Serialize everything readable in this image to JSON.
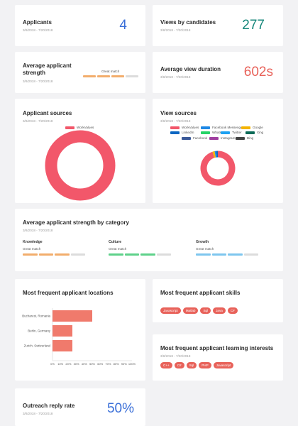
{
  "colors": {
    "blue": "#3a6fd8",
    "teal": "#17877b",
    "coral": "#e8625a",
    "pink": "#f2576a",
    "orange": "#f2ad6c",
    "green": "#5ed18a",
    "skyblue": "#7ec6ee",
    "grey": "#dcdcdc"
  },
  "date_range": "3/8/2018 - 7/20/2018",
  "applicants": {
    "title": "Applicants",
    "value": "4"
  },
  "views": {
    "title": "Views by candidates",
    "value": "277"
  },
  "strength": {
    "title_line1": "Average applicant",
    "title_line2": "strength",
    "level_label": "Great match",
    "filled_segments": 3,
    "total_segments": 4
  },
  "duration": {
    "title": "Average view duration",
    "value": "602s"
  },
  "app_sources": {
    "title": "Applicant sources",
    "legend": [
      {
        "label": "WorkValues",
        "color": "#f2576a"
      }
    ],
    "slices": [
      {
        "label": "WorkValues",
        "value": 100
      }
    ]
  },
  "view_sources": {
    "title": "View sources",
    "legend": [
      {
        "label": "WorkValues",
        "color": "#f2576a"
      },
      {
        "label": "Facebook Messenger",
        "color": "#1e88e5"
      },
      {
        "label": "Google",
        "color": "#f4b400"
      },
      {
        "label": "LinkedIn",
        "color": "#0a66c2"
      },
      {
        "label": "WhatsApp",
        "color": "#25d366"
      },
      {
        "label": "Twitter",
        "color": "#1da1f2"
      },
      {
        "label": "Xing",
        "color": "#0b6b58"
      },
      {
        "label": "Facebook",
        "color": "#3b5998"
      },
      {
        "label": "Instagram",
        "color": "#a03fa0"
      },
      {
        "label": "Bing",
        "color": "#444444"
      }
    ],
    "slices": [
      {
        "label": "WorkValues",
        "value": 95
      },
      {
        "label": "Google",
        "value": 2
      },
      {
        "label": "Facebook Messenger",
        "value": 1.5
      },
      {
        "label": "LinkedIn",
        "value": 1.5
      }
    ]
  },
  "category": {
    "title": "Average applicant strength by category",
    "items": [
      {
        "name": "Knowledge",
        "level": "Great match",
        "filled": 3,
        "color": "#f2ad6c"
      },
      {
        "name": "Culture",
        "level": "Great match",
        "filled": 3,
        "color": "#5ed18a"
      },
      {
        "name": "Growth",
        "level": "Great match",
        "filled": 3,
        "color": "#7ec6ee"
      }
    ]
  },
  "locations": {
    "title": "Most frequent applicant locations",
    "chart_data": {
      "type": "bar",
      "orientation": "horizontal",
      "categories": [
        "Bucharest, Romania",
        "Berlin, Germany",
        "Zurich, Switzerland"
      ],
      "values": [
        50,
        25,
        25
      ],
      "xlim": [
        0,
        100
      ],
      "ticks": [
        "0%",
        "10%",
        "20%",
        "30%",
        "40%",
        "50%",
        "60%",
        "70%",
        "80%",
        "90%",
        "100%"
      ],
      "grid": false
    }
  },
  "skills": {
    "title": "Most frequent applicant skills",
    "tags": [
      "Javascript",
      "Matlab",
      "Sql",
      "Java",
      "C#"
    ]
  },
  "interests": {
    "title": "Most frequent applicant learning interests",
    "tags": [
      "C++",
      "C#",
      "Sql",
      "PHP",
      "Javascript"
    ]
  },
  "outreach": {
    "title": "Outreach reply rate",
    "value": "50%"
  }
}
